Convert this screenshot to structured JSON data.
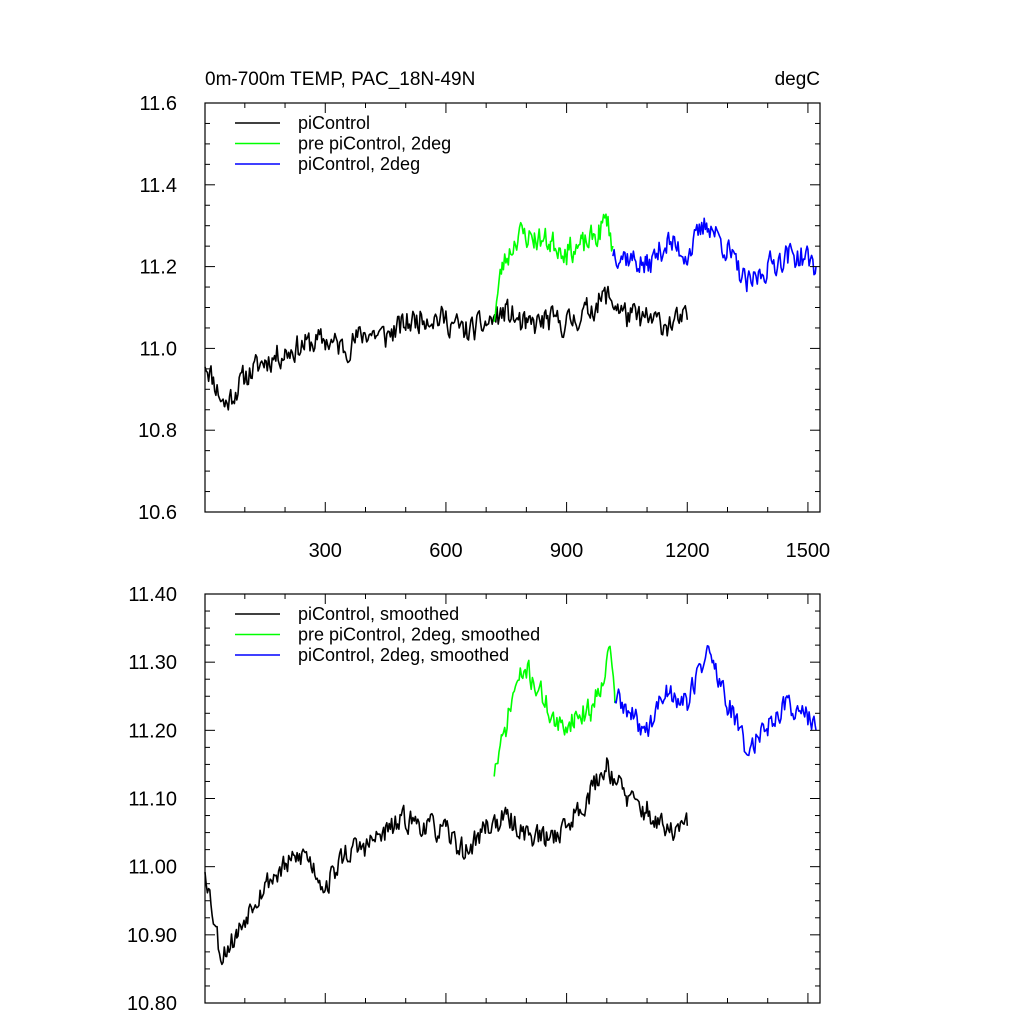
{
  "chart_data": [
    {
      "type": "line",
      "title_left": "0m-700m TEMP, PAC_18N-49N",
      "title_right": "degC",
      "xlabel": "",
      "ylabel": "",
      "xlim": [
        1,
        1530
      ],
      "ylim": [
        10.6,
        11.6
      ],
      "xticks": [
        300,
        600,
        900,
        1200,
        1500
      ],
      "yticks": [
        10.6,
        10.8,
        11.0,
        11.2,
        11.4,
        11.6
      ],
      "ytick_decimals": 1,
      "show_xtick_labels": true,
      "legend": "top-left",
      "series": [
        {
          "name": "piControl",
          "color": "#000000",
          "x": [
            1,
            50,
            100,
            150,
            200,
            250,
            300,
            350,
            400,
            450,
            500,
            550,
            600,
            650,
            700,
            750,
            800,
            850,
            900,
            950,
            1000,
            1050,
            1100,
            1150,
            1200
          ],
          "y": [
            10.97,
            10.86,
            10.93,
            10.97,
            10.99,
            11.01,
            11.02,
            11.0,
            11.04,
            11.03,
            11.06,
            11.08,
            11.07,
            11.04,
            11.06,
            11.09,
            11.05,
            11.07,
            11.06,
            11.09,
            11.13,
            11.08,
            11.07,
            11.06,
            11.07
          ],
          "noise": 0.045,
          "seed": 11,
          "lw": 1.6
        },
        {
          "name": "pre piControl, 2deg",
          "color": "#00ff00",
          "x": [
            720,
            740,
            780,
            820,
            860,
            900,
            940,
            980,
            1000,
            1015
          ],
          "y": [
            11.08,
            11.2,
            11.28,
            11.27,
            11.26,
            11.24,
            11.25,
            11.28,
            11.32,
            11.25
          ],
          "noise": 0.045,
          "seed": 23,
          "lw": 1.6
        },
        {
          "name": "piControl, 2deg",
          "color": "#0000ff",
          "x": [
            1015,
            1060,
            1100,
            1150,
            1200,
            1250,
            1300,
            1350,
            1400,
            1450,
            1500,
            1520
          ],
          "y": [
            11.24,
            11.22,
            11.2,
            11.26,
            11.23,
            11.31,
            11.24,
            11.15,
            11.2,
            11.23,
            11.22,
            11.2
          ],
          "noise": 0.045,
          "seed": 37,
          "lw": 1.6
        }
      ]
    },
    {
      "type": "line",
      "title_left": "",
      "title_right": "",
      "xlabel": "",
      "ylabel": "",
      "xlim": [
        1,
        1530
      ],
      "ylim": [
        10.8,
        11.4
      ],
      "xticks": [
        300,
        600,
        900,
        1200,
        1500
      ],
      "yticks": [
        10.8,
        10.9,
        11.0,
        11.1,
        11.2,
        11.3,
        11.4
      ],
      "ytick_decimals": 2,
      "show_xtick_labels": false,
      "legend": "top-left",
      "series": [
        {
          "name": "piControl, smoothed",
          "color": "#000000",
          "x": [
            1,
            40,
            80,
            120,
            160,
            200,
            250,
            300,
            350,
            400,
            450,
            500,
            550,
            600,
            650,
            700,
            750,
            800,
            850,
            900,
            950,
            1000,
            1050,
            1100,
            1150,
            1200
          ],
          "y": [
            11.0,
            10.87,
            10.9,
            10.95,
            10.98,
            11.0,
            11.02,
            10.97,
            11.02,
            11.03,
            11.05,
            11.07,
            11.06,
            11.05,
            11.02,
            11.06,
            11.07,
            11.05,
            11.04,
            11.06,
            11.1,
            11.15,
            11.1,
            11.08,
            11.05,
            11.06
          ],
          "noise": 0.025,
          "seed": 53,
          "lw": 1.6
        },
        {
          "name": "pre piControl, 2deg, smoothed",
          "color": "#00ff00",
          "x": [
            720,
            740,
            770,
            800,
            840,
            880,
            920,
            960,
            990,
            1010,
            1020
          ],
          "y": [
            11.14,
            11.18,
            11.26,
            11.29,
            11.25,
            11.2,
            11.22,
            11.23,
            11.28,
            11.32,
            11.24
          ],
          "noise": 0.025,
          "seed": 71,
          "lw": 1.6
        },
        {
          "name": "piControl, 2deg, smoothed",
          "color": "#0000ff",
          "x": [
            1020,
            1060,
            1100,
            1150,
            1200,
            1250,
            1300,
            1350,
            1400,
            1450,
            1500,
            1520
          ],
          "y": [
            11.25,
            11.22,
            11.2,
            11.26,
            11.24,
            11.32,
            11.24,
            11.17,
            11.21,
            11.24,
            11.22,
            11.2
          ],
          "noise": 0.025,
          "seed": 89,
          "lw": 1.6
        }
      ]
    }
  ]
}
